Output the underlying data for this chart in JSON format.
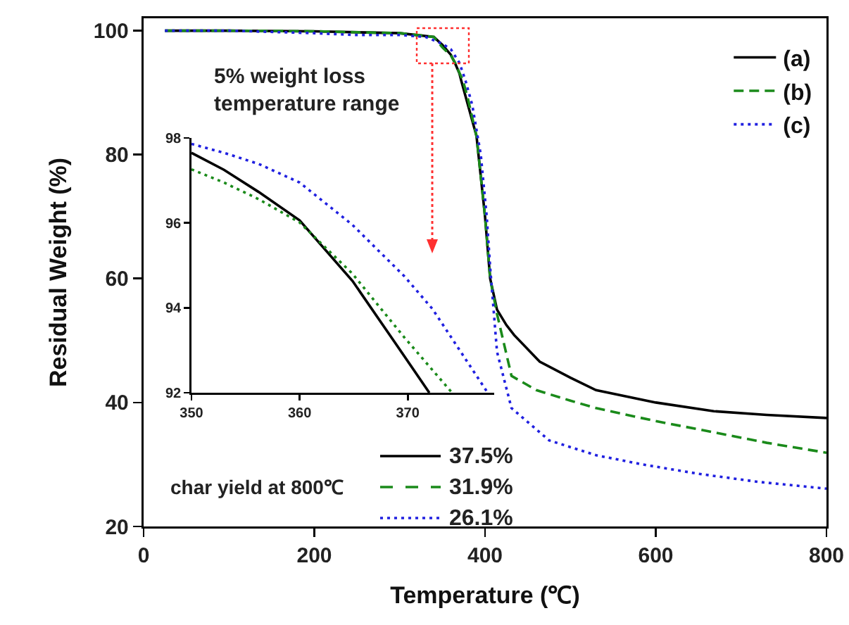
{
  "chart_data": [
    {
      "type": "line",
      "xlabel": "Temperature (℃)",
      "ylabel": "Residual Weight (%)",
      "xlim": [
        0,
        800
      ],
      "ylim": [
        20,
        102
      ],
      "xticks": [
        0,
        200,
        400,
        600,
        800
      ],
      "yticks": [
        20,
        40,
        60,
        80,
        100
      ],
      "legend": "top right",
      "grid": false,
      "marker": "none",
      "annotations": [
        "5% weight loss\ntemperature range",
        "char yield at 800℃",
        "37.5%",
        "31.9%",
        "26.1%"
      ],
      "series": [
        {
          "name": "(a)",
          "color": "#000000",
          "line_style": "solid",
          "x": [
            25,
            100,
            200,
            300,
            340,
            350,
            360,
            365,
            370,
            372,
            380,
            390,
            400,
            406,
            414,
            425,
            434,
            464,
            500,
            530,
            600,
            668,
            730,
            800
          ],
          "values": [
            100,
            100,
            99.9,
            99.6,
            99,
            97.7,
            96.1,
            94.7,
            93.1,
            92,
            88,
            83,
            70,
            60,
            55,
            52.5,
            50.9,
            46.6,
            44,
            42,
            40,
            38.6,
            38,
            37.5
          ]
        },
        {
          "name": "(b)",
          "color": "#1a8a1a",
          "line_style": "dashed",
          "x": [
            25,
            100,
            200,
            300,
            340,
            350,
            360,
            365,
            370,
            374,
            380,
            390,
            400,
            406,
            414,
            431,
            460,
            500,
            530,
            600,
            668,
            730,
            800
          ],
          "values": [
            100,
            100,
            99.9,
            99.6,
            99,
            97.3,
            96,
            94.8,
            93.2,
            92,
            89,
            83,
            70,
            60,
            54.3,
            44.3,
            42,
            40.3,
            39.1,
            37,
            35.2,
            33.5,
            31.9
          ]
        },
        {
          "name": "(c)",
          "color": "#2020e0",
          "line_style": "dotted",
          "x": [
            25,
            100,
            200,
            250,
            300,
            330,
            350,
            360,
            365,
            370,
            377,
            385,
            395,
            402,
            406,
            414,
            431,
            475,
            530,
            585,
            650,
            720,
            800
          ],
          "values": [
            100,
            100,
            99.6,
            99.3,
            99.3,
            99,
            97.9,
            97,
            95.9,
            94.8,
            92,
            88,
            80,
            70,
            61.8,
            48.2,
            39.1,
            33.9,
            31.5,
            30,
            28.5,
            27.2,
            26.1
          ]
        }
      ]
    },
    {
      "type": "line",
      "xlim": [
        350,
        378
      ],
      "ylim": [
        92,
        98
      ],
      "xticks": [
        350,
        360,
        370
      ],
      "yticks": [
        92,
        94,
        96,
        98
      ],
      "grid": false,
      "marker": "none",
      "series": [
        {
          "color": "#000000",
          "line_style": "solid",
          "x": [
            350,
            353,
            356.2,
            360,
            364.9,
            368.8,
            372
          ],
          "values": [
            97.65,
            97.25,
            96.73,
            96.06,
            94.63,
            93.19,
            92
          ]
        },
        {
          "color": "#1a8a1a",
          "line_style": "dotted",
          "x": [
            350,
            353,
            356.2,
            360,
            364.9,
            369.7,
            374.1
          ],
          "values": [
            97.26,
            96.95,
            96.56,
            96.01,
            94.8,
            93.3,
            92
          ]
        },
        {
          "color": "#2020e0",
          "line_style": "dotted",
          "x": [
            350,
            353,
            356.2,
            360,
            364.9,
            369.7,
            372.3,
            377.4
          ],
          "values": [
            97.86,
            97.65,
            97.39,
            96.95,
            95.95,
            94.74,
            93.97,
            92
          ]
        }
      ]
    }
  ]
}
